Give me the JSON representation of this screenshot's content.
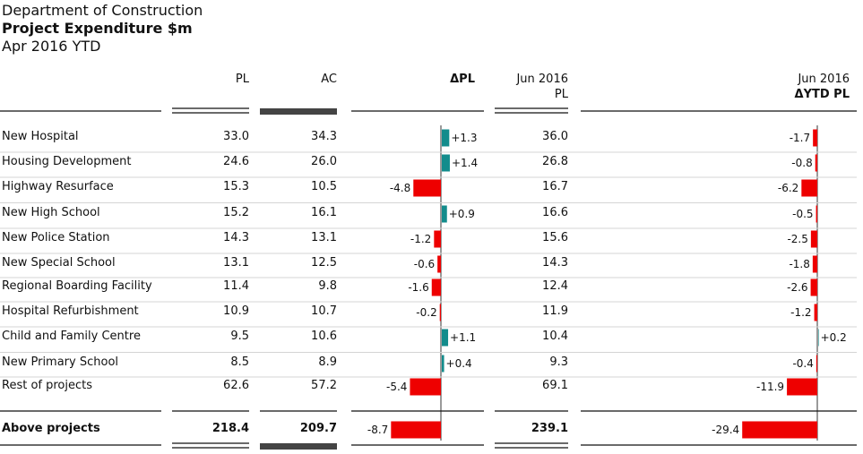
{
  "header": {
    "line1": "Department of Construction",
    "line2": "Project Expenditure $m",
    "line3": "Apr 2016 YTD"
  },
  "columns": {
    "pl": "PL",
    "ac": "AC",
    "delta_pl": "ΔPL",
    "jun_pl_line1": "Jun 2016",
    "jun_pl_line2": "PL",
    "ytd_line1": "Jun 2016",
    "ytd_line2": "ΔYTD PL"
  },
  "colors": {
    "negative": "#ee0000",
    "positive": "#138c8c",
    "axis": "#9a9a9a",
    "ac_bar": "#444444"
  },
  "chart_data": {
    "type": "table",
    "rows": [
      {
        "name": "New Hospital",
        "pl": "33.0",
        "ac": "34.3",
        "delta": 1.3,
        "delta_label": "+1.3",
        "jun_pl": "36.0",
        "ytd": -1.7,
        "ytd_label": "-1.7"
      },
      {
        "name": "Housing Development",
        "pl": "24.6",
        "ac": "26.0",
        "delta": 1.4,
        "delta_label": "+1.4",
        "jun_pl": "26.8",
        "ytd": -0.8,
        "ytd_label": "-0.8"
      },
      {
        "name": "Highway Resurface",
        "pl": "15.3",
        "ac": "10.5",
        "delta": -4.8,
        "delta_label": "-4.8",
        "jun_pl": "16.7",
        "ytd": -6.2,
        "ytd_label": "-6.2"
      },
      {
        "name": "New High School",
        "pl": "15.2",
        "ac": "16.1",
        "delta": 0.9,
        "delta_label": "+0.9",
        "jun_pl": "16.6",
        "ytd": -0.5,
        "ytd_label": "-0.5"
      },
      {
        "name": "New Police Station",
        "pl": "14.3",
        "ac": "13.1",
        "delta": -1.2,
        "delta_label": "-1.2",
        "jun_pl": "15.6",
        "ytd": -2.5,
        "ytd_label": "-2.5"
      },
      {
        "name": "New Special School",
        "pl": "13.1",
        "ac": "12.5",
        "delta": -0.6,
        "delta_label": "-0.6",
        "jun_pl": "14.3",
        "ytd": -1.8,
        "ytd_label": "-1.8"
      },
      {
        "name": "Regional Boarding Facility",
        "pl": "11.4",
        "ac": "9.8",
        "delta": -1.6,
        "delta_label": "-1.6",
        "jun_pl": "12.4",
        "ytd": -2.6,
        "ytd_label": "-2.6"
      },
      {
        "name": "Hospital Refurbishment",
        "pl": "10.9",
        "ac": "10.7",
        "delta": -0.2,
        "delta_label": "-0.2",
        "jun_pl": "11.9",
        "ytd": -1.2,
        "ytd_label": "-1.2"
      },
      {
        "name": "Child and Family Centre",
        "pl": "9.5",
        "ac": "10.6",
        "delta": 1.1,
        "delta_label": "+1.1",
        "jun_pl": "10.4",
        "ytd": 0.2,
        "ytd_label": "+0.2"
      },
      {
        "name": "New Primary School",
        "pl": "8.5",
        "ac": "8.9",
        "delta": 0.4,
        "delta_label": "+0.4",
        "jun_pl": "9.3",
        "ytd": -0.4,
        "ytd_label": "-0.4"
      },
      {
        "name": "Rest of projects",
        "pl": "62.6",
        "ac": "57.2",
        "delta": -5.4,
        "delta_label": "-5.4",
        "jun_pl": "69.1",
        "ytd": -11.9,
        "ytd_label": "-11.9"
      }
    ],
    "total": {
      "name": "Above projects",
      "pl": "218.4",
      "ac": "209.7",
      "delta": -8.7,
      "delta_label": "-8.7",
      "jun_pl": "239.1",
      "ytd": -29.4,
      "ytd_label": "-29.4"
    }
  }
}
